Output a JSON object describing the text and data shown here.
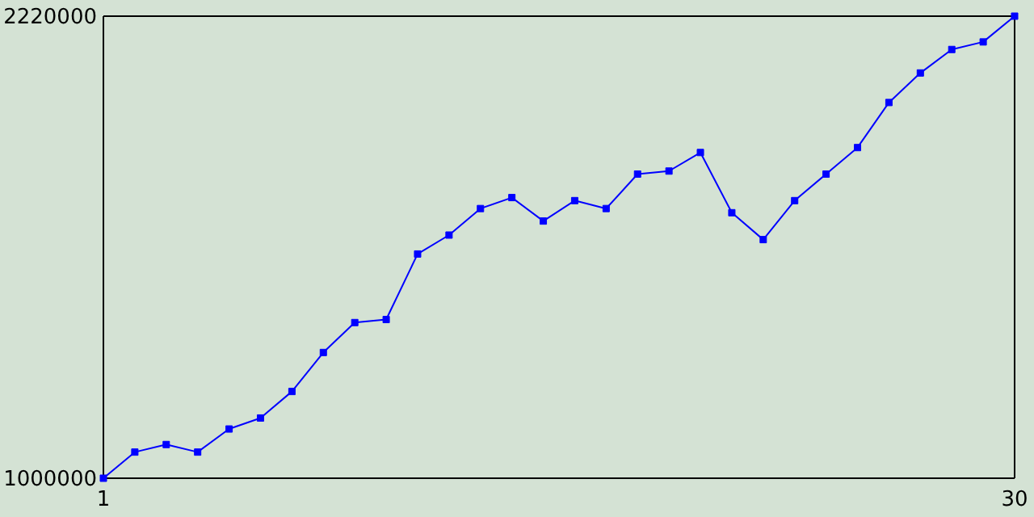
{
  "chart_data": {
    "type": "line",
    "x": [
      1,
      2,
      3,
      4,
      5,
      6,
      7,
      8,
      9,
      10,
      11,
      12,
      13,
      14,
      15,
      16,
      17,
      18,
      19,
      20,
      21,
      22,
      23,
      24,
      25,
      26,
      27,
      28,
      29,
      30
    ],
    "series": [
      {
        "color": "#0000ff",
        "values": [
          1000000,
          1069000,
          1089000,
          1069000,
          1130000,
          1159000,
          1229000,
          1332000,
          1411000,
          1419000,
          1592000,
          1642000,
          1712000,
          1741000,
          1679000,
          1733000,
          1712000,
          1803000,
          1811000,
          1860000,
          1701000,
          1630000,
          1733000,
          1803000,
          1873000,
          1992000,
          2070000,
          2132000,
          2152000,
          2220000
        ]
      }
    ],
    "xlim": [
      1,
      30
    ],
    "xticks": [
      1,
      30
    ],
    "ylim": [
      1000000,
      2220000
    ],
    "yticks": [
      1000000,
      2220000
    ],
    "marker": "square",
    "grid": false
  }
}
